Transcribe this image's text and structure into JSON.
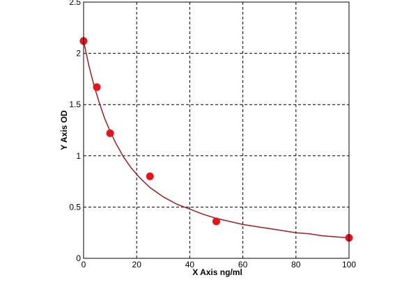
{
  "chart_data": {
    "type": "scatter",
    "title": "",
    "xlabel": "X Axis ng/ml",
    "ylabel": "Y Axis OD",
    "xlim": [
      0,
      100
    ],
    "ylim": [
      0,
      2.5
    ],
    "x_ticks": [
      0,
      20,
      40,
      60,
      80,
      100
    ],
    "y_ticks": [
      0,
      0.5,
      1,
      1.5,
      2,
      2.5
    ],
    "x_tick_labels": [
      "0",
      "20",
      "40",
      "60",
      "80",
      "100"
    ],
    "y_tick_labels": [
      "0",
      "0.5",
      "1",
      "1.5",
      "2",
      "2.5"
    ],
    "grid": true,
    "grid_style": "dashed",
    "series": [
      {
        "x": [
          0,
          5,
          10,
          25,
          50,
          100
        ],
        "y": [
          2.12,
          1.67,
          1.22,
          0.8,
          0.36,
          0.2
        ],
        "marker_color": "#e8141b"
      }
    ],
    "fit_curve": {
      "color": "#a31b1f",
      "x": [
        0,
        2,
        4,
        6,
        8,
        10,
        12,
        15,
        18,
        21,
        25,
        30,
        35,
        40,
        45,
        50,
        55,
        60,
        65,
        70,
        75,
        80,
        85,
        90,
        95,
        100
      ],
      "y": [
        2.12,
        1.88,
        1.68,
        1.51,
        1.36,
        1.24,
        1.13,
        0.99,
        0.88,
        0.79,
        0.69,
        0.6,
        0.53,
        0.48,
        0.43,
        0.39,
        0.36,
        0.33,
        0.31,
        0.29,
        0.27,
        0.25,
        0.24,
        0.22,
        0.21,
        0.2
      ]
    }
  }
}
